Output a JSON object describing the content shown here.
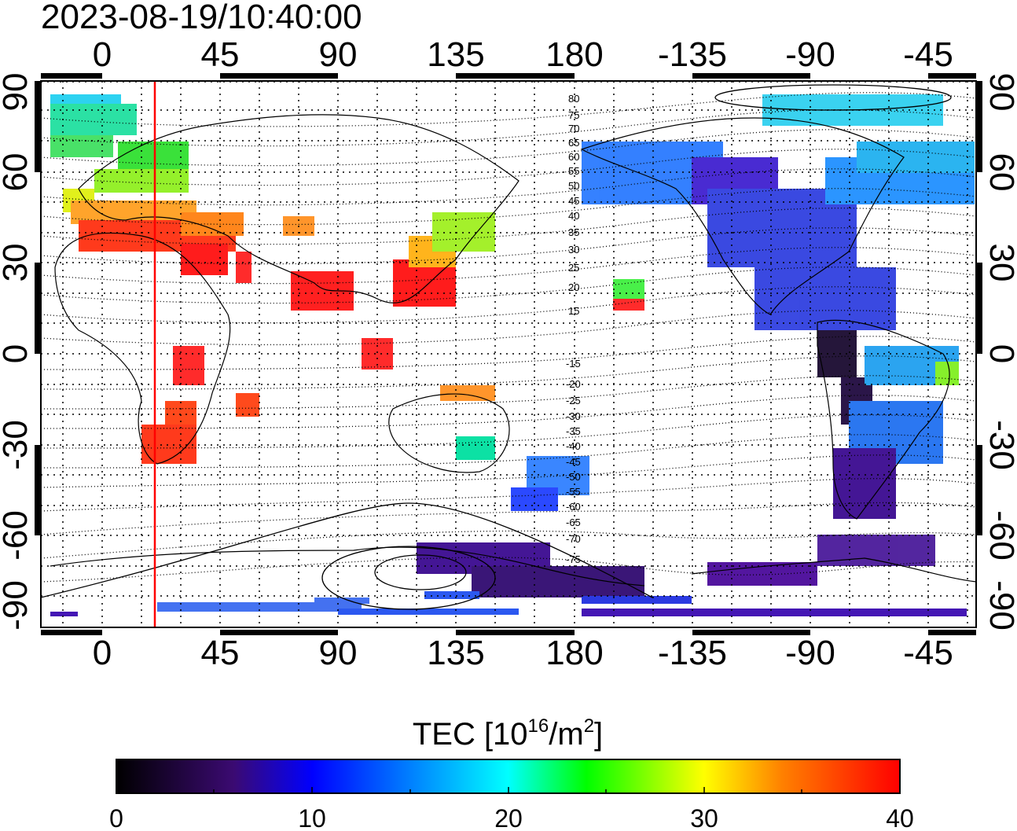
{
  "title": "2023-08-19/10:40:00",
  "map": {
    "lon_top_labels": [
      "0",
      "45",
      "90",
      "135",
      "180",
      "-135",
      "-90",
      "-45"
    ],
    "lon_bottom_labels": [
      "0",
      "45",
      "90",
      "135",
      "180",
      "-135",
      "-90",
      "-45"
    ],
    "lat_left_labels": [
      "90",
      "60",
      "30",
      "0",
      "-30",
      "-60",
      "-90"
    ],
    "lat_right_labels": [
      "90",
      "60",
      "30",
      "0",
      "-30",
      "-60",
      "-90"
    ],
    "contour_labels_north": [
      "80",
      "75",
      "70",
      "65",
      "60",
      "55",
      "50",
      "45",
      "40",
      "35",
      "30",
      "25",
      "20",
      "15"
    ],
    "contour_labels_south": [
      "-15",
      "-20",
      "-25",
      "-30",
      "-35",
      "-40",
      "-45",
      "-50",
      "-55",
      "-60",
      "-65",
      "-70",
      "-75"
    ],
    "terminator_longitude": 20,
    "terminator_color": "#ff0000"
  },
  "colorbar": {
    "label_main": "TEC  [10",
    "label_exp1": "16",
    "label_mid": "/m",
    "label_exp2": "2",
    "label_end": "]",
    "ticks": [
      "0",
      "10",
      "20",
      "30",
      "40"
    ],
    "min": 0,
    "max": 40,
    "colors": [
      "#000000",
      "#3b0a72",
      "#0000ff",
      "#00ffff",
      "#00ff00",
      "#ffff00",
      "#ff8000",
      "#ff0000"
    ]
  }
}
